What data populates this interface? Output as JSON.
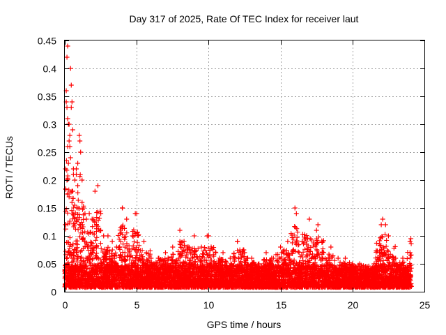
{
  "chart_data": {
    "type": "scatter",
    "title": "Day 317 of 2025, Rate Of TEC Index for receiver laut",
    "xlabel": "GPS time / hours",
    "ylabel": "ROTI / TECUs",
    "xlim": [
      0,
      25
    ],
    "ylim": [
      0,
      0.45
    ],
    "grid": true,
    "marker": "+",
    "color": "#ff0000",
    "x_ticks": [
      0,
      5,
      10,
      15,
      20,
      25
    ],
    "x_tick_labels": [
      "0",
      "5",
      "10",
      "15",
      "20",
      "25"
    ],
    "y_ticks": [
      0,
      0.05,
      0.1,
      0.15,
      0.2,
      0.25,
      0.3,
      0.35,
      0.4,
      0.45
    ],
    "y_tick_labels": [
      "0",
      "0.05",
      "0.1",
      "0.15",
      "0.2",
      "0.25",
      "0.3",
      "0.35",
      "0.4",
      "0.45"
    ],
    "series": [
      {
        "name": "ROTI",
        "x": [
          0.05,
          0.1,
          0.15,
          0.2,
          0.25,
          0.3,
          0.35,
          0.4,
          0.45,
          0.5,
          0.55,
          0.6,
          0.7,
          0.8,
          0.9,
          1.0,
          1.1,
          1.2,
          1.3,
          1.4,
          1.5,
          1.7,
          1.9,
          2.1,
          2.3,
          2.5,
          2.7,
          3.0,
          3.3,
          3.6,
          4.0,
          4.3,
          4.7,
          5.0,
          5.5,
          6.0,
          6.5,
          7.0,
          7.5,
          8.0,
          8.5,
          9.0,
          9.5,
          10.0,
          10.5,
          11.0,
          11.5,
          12.0,
          12.5,
          13.0,
          13.5,
          14.0,
          14.5,
          15.0,
          15.5,
          16.0,
          16.5,
          17.0,
          17.5,
          18.0,
          18.5,
          19.0,
          19.5,
          20.0,
          20.5,
          21.0,
          21.5,
          22.0,
          22.5,
          23.0,
          23.5,
          24.0,
          0.1,
          0.15,
          0.2,
          0.3,
          0.45,
          0.5,
          0.35,
          0.25,
          0.05,
          0.2,
          0.4,
          0.6,
          0.9,
          1.2,
          1.05,
          0.8,
          0.55,
          0.3,
          0.15,
          0.5,
          2.5,
          4.0,
          4.9,
          8.0,
          9.9,
          12.0,
          16.1,
          17.6,
          22.1,
          22.3,
          24.0,
          0.2,
          0.5,
          0.8,
          1.1,
          1.4,
          1.8,
          2.2,
          2.6,
          3.1,
          3.7,
          4.4,
          5.2,
          6.1,
          7.3,
          8.4,
          9.6,
          10.8,
          11.7,
          12.9,
          13.8,
          14.6,
          15.7,
          16.3,
          17.2,
          18.1,
          18.9,
          19.8,
          20.7,
          21.6,
          22.4,
          23.1,
          23.8
        ],
        "y": [
          0.12,
          0.36,
          0.42,
          0.44,
          0.3,
          0.27,
          0.26,
          0.4,
          0.37,
          0.18,
          0.29,
          0.22,
          0.2,
          0.22,
          0.19,
          0.28,
          0.25,
          0.16,
          0.15,
          0.14,
          0.13,
          0.14,
          0.13,
          0.18,
          0.19,
          0.11,
          0.1,
          0.1,
          0.09,
          0.08,
          0.15,
          0.13,
          0.1,
          0.14,
          0.09,
          0.06,
          0.06,
          0.07,
          0.08,
          0.09,
          0.08,
          0.1,
          0.08,
          0.1,
          0.07,
          0.07,
          0.06,
          0.09,
          0.07,
          0.06,
          0.05,
          0.07,
          0.06,
          0.08,
          0.09,
          0.15,
          0.09,
          0.13,
          0.11,
          0.07,
          0.08,
          0.06,
          0.06,
          0.05,
          0.05,
          0.04,
          0.05,
          0.12,
          0.1,
          0.06,
          0.06,
          0.09,
          0.34,
          0.33,
          0.31,
          0.3,
          0.33,
          0.34,
          0.28,
          0.23,
          0.22,
          0.26,
          0.24,
          0.21,
          0.23,
          0.2,
          0.27,
          0.21,
          0.18,
          0.17,
          0.2,
          0.16,
          0.14,
          0.15,
          0.14,
          0.11,
          0.1,
          0.09,
          0.14,
          0.12,
          0.13,
          0.12,
          0.07,
          0.05,
          0.06,
          0.07,
          0.06,
          0.05,
          0.05,
          0.04,
          0.05,
          0.04,
          0.04,
          0.04,
          0.03,
          0.03,
          0.03,
          0.03,
          0.03,
          0.03,
          0.03,
          0.03,
          0.03,
          0.03,
          0.03,
          0.04,
          0.04,
          0.03,
          0.03,
          0.03,
          0.03,
          0.03,
          0.04,
          0.03,
          0.03
        ]
      }
    ]
  }
}
